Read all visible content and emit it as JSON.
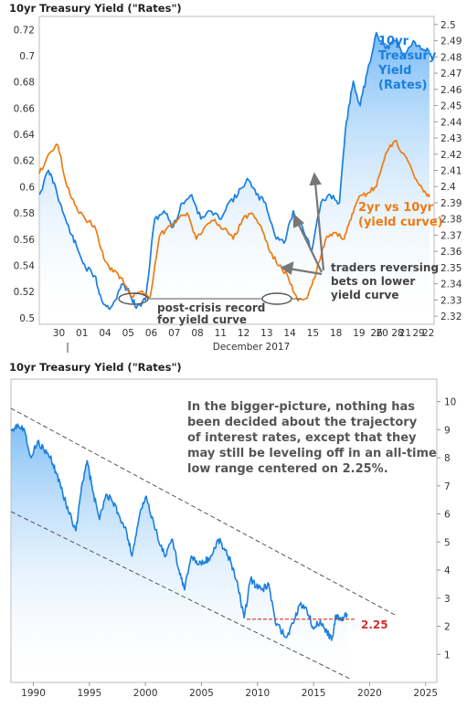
{
  "chart_data": [
    {
      "type": "line",
      "title": "10yr Treasury Yield (\"Rates\")",
      "xlabel": "December 2017",
      "x_ticks": [
        "30",
        "01",
        "04",
        "05",
        "06",
        "07",
        "08",
        "11",
        "12",
        "13",
        "14",
        "15",
        "18",
        "19",
        "20",
        "21",
        "22",
        "26",
        "28",
        "29"
      ],
      "y_left_ticks": [
        "0.5",
        "0.52",
        "0.54",
        "0.56",
        "0.58",
        "0.6",
        "0.62",
        "0.64",
        "0.66",
        "0.68",
        "0.7",
        "0.72"
      ],
      "y_right_ticks": [
        "2.32",
        "2.33",
        "2.34",
        "2.35",
        "2.36",
        "2.37",
        "2.38",
        "2.39",
        "2.4",
        "2.41",
        "2.42",
        "2.43",
        "2.44",
        "2.45",
        "2.46",
        "2.47",
        "2.48",
        "2.49",
        "2.5"
      ],
      "ylim_left": [
        0.495,
        0.73
      ],
      "ylim_right": [
        2.315,
        2.505
      ],
      "series": [
        {
          "name": "10yr Treasury Yield (Rates)",
          "axis": "right",
          "color": "#1a7fe0",
          "values": [
            [
              0,
              2.395
            ],
            [
              0.4,
              2.41
            ],
            [
              0.7,
              2.4
            ],
            [
              1.0,
              2.385
            ],
            [
              1.4,
              2.37
            ],
            [
              1.7,
              2.36
            ],
            [
              2.0,
              2.35
            ],
            [
              2.4,
              2.345
            ],
            [
              2.7,
              2.33
            ],
            [
              3.0,
              2.325
            ],
            [
              3.3,
              2.33
            ],
            [
              3.6,
              2.34
            ],
            [
              3.9,
              2.335
            ],
            [
              4.2,
              2.325
            ],
            [
              4.6,
              2.33
            ],
            [
              5.0,
              2.38
            ],
            [
              5.4,
              2.385
            ],
            [
              5.8,
              2.375
            ],
            [
              6.2,
              2.39
            ],
            [
              6.6,
              2.395
            ],
            [
              7.0,
              2.38
            ],
            [
              7.4,
              2.385
            ],
            [
              7.8,
              2.38
            ],
            [
              8.2,
              2.39
            ],
            [
              8.6,
              2.395
            ],
            [
              9.0,
              2.405
            ],
            [
              9.4,
              2.395
            ],
            [
              9.8,
              2.39
            ],
            [
              10.2,
              2.37
            ],
            [
              10.6,
              2.365
            ],
            [
              11.0,
              2.385
            ],
            [
              11.4,
              2.375
            ],
            [
              11.8,
              2.36
            ],
            [
              12.2,
              2.39
            ],
            [
              12.6,
              2.395
            ],
            [
              13.0,
              2.39
            ],
            [
              13.3,
              2.44
            ],
            [
              13.6,
              2.465
            ],
            [
              13.9,
              2.45
            ],
            [
              14.2,
              2.47
            ],
            [
              14.6,
              2.495
            ],
            [
              15.0,
              2.485
            ],
            [
              15.4,
              2.49
            ],
            [
              15.8,
              2.48
            ],
            [
              16.2,
              2.49
            ],
            [
              16.6,
              2.485
            ],
            [
              16.9,
              2.483
            ]
          ]
        },
        {
          "name": "2yr vs 10yr (yield curve)",
          "axis": "left",
          "color": "#f07a10",
          "values": [
            [
              0,
              0.61
            ],
            [
              0.4,
              0.625
            ],
            [
              0.8,
              0.632
            ],
            [
              1.2,
              0.6
            ],
            [
              1.6,
              0.585
            ],
            [
              2.0,
              0.575
            ],
            [
              2.4,
              0.57
            ],
            [
              2.8,
              0.545
            ],
            [
              3.2,
              0.535
            ],
            [
              3.6,
              0.53
            ],
            [
              4.0,
              0.516
            ],
            [
              4.4,
              0.52
            ],
            [
              4.8,
              0.516
            ],
            [
              5.2,
              0.562
            ],
            [
              5.6,
              0.57
            ],
            [
              6.0,
              0.575
            ],
            [
              6.4,
              0.58
            ],
            [
              6.8,
              0.56
            ],
            [
              7.2,
              0.57
            ],
            [
              7.6,
              0.575
            ],
            [
              8.0,
              0.568
            ],
            [
              8.4,
              0.56
            ],
            [
              8.8,
              0.575
            ],
            [
              9.2,
              0.58
            ],
            [
              9.6,
              0.57
            ],
            [
              10.0,
              0.55
            ],
            [
              10.4,
              0.54
            ],
            [
              10.8,
              0.53
            ],
            [
              11.2,
              0.513
            ],
            [
              11.6,
              0.515
            ],
            [
              12.0,
              0.535
            ],
            [
              12.4,
              0.56
            ],
            [
              12.8,
              0.565
            ],
            [
              13.2,
              0.56
            ],
            [
              13.5,
              0.575
            ],
            [
              13.8,
              0.59
            ],
            [
              14.2,
              0.595
            ],
            [
              14.6,
              0.6
            ],
            [
              15.0,
              0.625
            ],
            [
              15.4,
              0.635
            ],
            [
              15.8,
              0.625
            ],
            [
              16.2,
              0.61
            ],
            [
              16.6,
              0.598
            ],
            [
              16.9,
              0.592
            ]
          ]
        }
      ],
      "labels": {
        "blue_1": "10yr",
        "blue_2": "Treasury",
        "blue_3": "Yield",
        "blue_4": "(Rates)",
        "orange_1": "2yr vs 10yr",
        "orange_2": "(yield curve)"
      },
      "annotations": {
        "record_1": "post-crisis record",
        "record_2": "for yield curve",
        "traders_1": "traders reversing",
        "traders_2": "bets on lower",
        "traders_3": "yield curve"
      }
    },
    {
      "type": "line",
      "title": "10yr Treasury Yield (\"Rates\")",
      "x_ticks": [
        "1990",
        "1995",
        "2000",
        "2005",
        "2010",
        "2015",
        "2020",
        "2025"
      ],
      "y_ticks": [
        "1",
        "2",
        "3",
        "4",
        "5",
        "6",
        "7",
        "8",
        "9",
        "10"
      ],
      "xlim": [
        1988,
        2026
      ],
      "ylim": [
        0,
        10.8
      ],
      "series": [
        {
          "name": "10yr Treasury Yield",
          "color": "#1a7fe0",
          "values": [
            [
              1988.0,
              9.0
            ],
            [
              1988.6,
              9.2
            ],
            [
              1989.2,
              9.0
            ],
            [
              1989.8,
              8.0
            ],
            [
              1990.4,
              8.6
            ],
            [
              1990.9,
              8.3
            ],
            [
              1991.5,
              8.0
            ],
            [
              1992.0,
              7.5
            ],
            [
              1992.6,
              6.8
            ],
            [
              1993.2,
              6.0
            ],
            [
              1993.8,
              5.4
            ],
            [
              1994.3,
              7.0
            ],
            [
              1994.8,
              7.9
            ],
            [
              1995.3,
              6.8
            ],
            [
              1995.9,
              5.8
            ],
            [
              1996.5,
              6.7
            ],
            [
              1997.1,
              6.4
            ],
            [
              1997.7,
              5.9
            ],
            [
              1998.3,
              5.4
            ],
            [
              1998.8,
              4.5
            ],
            [
              1999.4,
              5.8
            ],
            [
              2000.0,
              6.6
            ],
            [
              2000.6,
              5.9
            ],
            [
              2001.2,
              5.0
            ],
            [
              2001.8,
              4.5
            ],
            [
              2002.4,
              5.1
            ],
            [
              2003.0,
              4.0
            ],
            [
              2003.5,
              3.3
            ],
            [
              2004.1,
              4.5
            ],
            [
              2004.7,
              4.2
            ],
            [
              2005.3,
              4.3
            ],
            [
              2005.9,
              4.5
            ],
            [
              2006.5,
              5.1
            ],
            [
              2007.1,
              4.7
            ],
            [
              2007.6,
              4.3
            ],
            [
              2008.2,
              3.6
            ],
            [
              2008.8,
              2.3
            ],
            [
              2009.4,
              3.7
            ],
            [
              2009.9,
              3.4
            ],
            [
              2010.4,
              3.3
            ],
            [
              2011.0,
              3.5
            ],
            [
              2011.6,
              2.1
            ],
            [
              2012.2,
              1.8
            ],
            [
              2012.6,
              1.6
            ],
            [
              2013.2,
              2.1
            ],
            [
              2013.8,
              2.8
            ],
            [
              2014.4,
              2.6
            ],
            [
              2015.0,
              1.9
            ],
            [
              2015.6,
              2.2
            ],
            [
              2016.2,
              1.8
            ],
            [
              2016.6,
              1.5
            ],
            [
              2017.0,
              2.4
            ],
            [
              2017.5,
              2.2
            ],
            [
              2018.0,
              2.45
            ]
          ]
        }
      ],
      "reference_value": "2.25",
      "note": [
        "In the bigger-picture, nothing has",
        "been decided about the trajectory",
        "of interest rates, except that they",
        "may still be leveling off in an all-time",
        "low range centered on 2.25%."
      ]
    }
  ]
}
